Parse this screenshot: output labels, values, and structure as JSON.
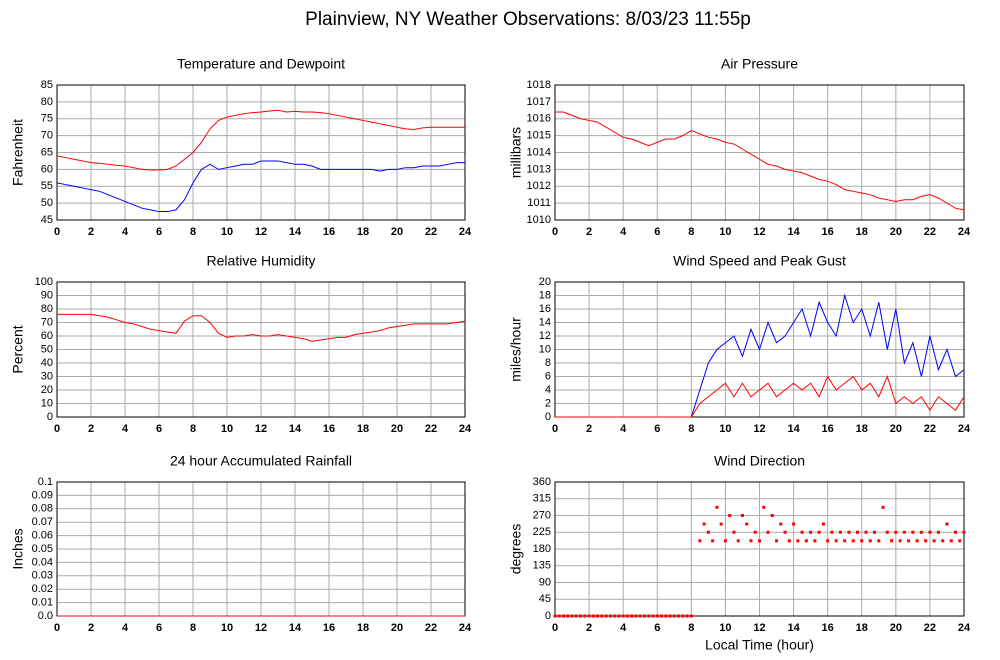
{
  "title": "Plainview, NY Weather Observations: 8/03/23 11:55p",
  "chart_data": [
    {
      "type": "line",
      "title": "Temperature and Dewpoint",
      "ylabel": "Fahrenheit",
      "x": [
        0,
        0.5,
        1,
        1.5,
        2,
        2.5,
        3,
        3.5,
        4,
        4.5,
        5,
        5.5,
        6,
        6.5,
        7,
        7.5,
        8,
        8.5,
        9,
        9.5,
        10,
        10.5,
        11,
        11.5,
        12,
        12.5,
        13,
        13.5,
        14,
        14.5,
        15,
        15.5,
        16,
        16.5,
        17,
        17.5,
        18,
        18.5,
        19,
        19.5,
        20,
        20.5,
        21,
        21.5,
        22,
        22.5,
        23,
        23.5,
        24
      ],
      "series": [
        {
          "color": "#ff0000",
          "values": [
            64,
            63.5,
            63,
            62.5,
            62,
            61.8,
            61.5,
            61.2,
            61,
            60.5,
            60,
            59.8,
            59.8,
            60,
            61,
            63,
            65,
            68,
            72,
            74.5,
            75.5,
            76,
            76.5,
            76.8,
            77,
            77.3,
            77.5,
            77,
            77.2,
            77,
            77,
            76.8,
            76.5,
            76,
            75.5,
            75,
            74.5,
            74,
            73.5,
            73,
            72.5,
            72,
            71.8,
            72.3,
            72.5,
            72.5,
            72.5,
            72.5,
            72.5
          ]
        },
        {
          "color": "#0000ff",
          "values": [
            56,
            55.5,
            55,
            54.5,
            54,
            53.5,
            52.5,
            51.5,
            50.5,
            49.5,
            48.5,
            48,
            47.5,
            47.5,
            48,
            51,
            56,
            60,
            61.5,
            60,
            60.5,
            61,
            61.5,
            61.5,
            62.5,
            62.5,
            62.5,
            62,
            61.5,
            61.5,
            61,
            60,
            60,
            60,
            60,
            60,
            60,
            60,
            59.5,
            60,
            60,
            60.5,
            60.5,
            61,
            61,
            61,
            61.5,
            62,
            62
          ]
        }
      ],
      "xlim": [
        0,
        24
      ],
      "xticks": [
        0,
        2,
        4,
        6,
        8,
        10,
        12,
        14,
        16,
        18,
        20,
        22,
        24
      ],
      "ylim": [
        45,
        85
      ],
      "yticks": [
        45,
        50,
        55,
        60,
        65,
        70,
        75,
        80,
        85
      ],
      "grid": true
    },
    {
      "type": "line",
      "title": "Air Pressure",
      "ylabel": "millibars",
      "x": [
        0,
        0.5,
        1,
        1.5,
        2,
        2.5,
        3,
        3.5,
        4,
        4.5,
        5,
        5.5,
        6,
        6.5,
        7,
        7.5,
        8,
        8.5,
        9,
        9.5,
        10,
        10.5,
        11,
        11.5,
        12,
        12.5,
        13,
        13.5,
        14,
        14.5,
        15,
        15.5,
        16,
        16.5,
        17,
        17.5,
        18,
        18.5,
        19,
        19.5,
        20,
        20.5,
        21,
        21.5,
        22,
        22.5,
        23,
        23.5,
        24
      ],
      "series": [
        {
          "color": "#ff0000",
          "values": [
            1016.4,
            1016.4,
            1016.2,
            1016,
            1015.9,
            1015.8,
            1015.5,
            1015.2,
            1014.9,
            1014.8,
            1014.6,
            1014.4,
            1014.6,
            1014.8,
            1014.8,
            1015,
            1015.3,
            1015.1,
            1014.9,
            1014.8,
            1014.6,
            1014.5,
            1014.2,
            1013.9,
            1013.6,
            1013.3,
            1013.2,
            1013,
            1012.9,
            1012.8,
            1012.6,
            1012.4,
            1012.3,
            1012.1,
            1011.8,
            1011.7,
            1011.6,
            1011.5,
            1011.3,
            1011.2,
            1011.1,
            1011.2,
            1011.2,
            1011.4,
            1011.5,
            1011.3,
            1011,
            1010.7,
            1010.6
          ]
        }
      ],
      "xlim": [
        0,
        24
      ],
      "xticks": [
        0,
        2,
        4,
        6,
        8,
        10,
        12,
        14,
        16,
        18,
        20,
        22,
        24
      ],
      "ylim": [
        1010,
        1018
      ],
      "yticks": [
        1010,
        1011,
        1012,
        1013,
        1014,
        1015,
        1016,
        1017,
        1018
      ],
      "grid": true
    },
    {
      "type": "line",
      "title": "Relative Humidity",
      "ylabel": "Percent",
      "x": [
        0,
        0.5,
        1,
        1.5,
        2,
        2.5,
        3,
        3.5,
        4,
        4.5,
        5,
        5.5,
        6,
        6.5,
        7,
        7.5,
        8,
        8.5,
        9,
        9.5,
        10,
        10.5,
        11,
        11.5,
        12,
        12.5,
        13,
        13.5,
        14,
        14.5,
        15,
        15.5,
        16,
        16.5,
        17,
        17.5,
        18,
        18.5,
        19,
        19.5,
        20,
        20.5,
        21,
        21.5,
        22,
        22.5,
        23,
        23.5,
        24
      ],
      "series": [
        {
          "color": "#ff0000",
          "values": [
            76,
            76,
            76,
            76,
            76,
            75,
            74,
            72,
            70,
            69,
            67,
            65,
            64,
            63,
            62,
            71,
            75,
            75,
            70,
            62,
            59,
            60,
            60,
            61,
            60,
            60,
            61,
            60,
            59,
            58,
            56,
            57,
            58,
            59,
            59,
            61,
            62,
            63,
            64,
            66,
            67,
            68,
            69,
            69,
            69,
            69,
            69,
            70,
            71
          ]
        }
      ],
      "xlim": [
        0,
        24
      ],
      "xticks": [
        0,
        2,
        4,
        6,
        8,
        10,
        12,
        14,
        16,
        18,
        20,
        22,
        24
      ],
      "ylim": [
        0,
        100
      ],
      "yticks": [
        0,
        10,
        20,
        30,
        40,
        50,
        60,
        70,
        80,
        90,
        100
      ],
      "grid": true
    },
    {
      "type": "line",
      "title": "Wind Speed and Peak Gust",
      "ylabel": "miles/hour",
      "x": [
        0,
        0.5,
        1,
        1.5,
        2,
        2.5,
        3,
        3.5,
        4,
        4.5,
        5,
        5.5,
        6,
        6.5,
        7,
        7.5,
        8,
        8.5,
        9,
        9.5,
        10,
        10.5,
        11,
        11.5,
        12,
        12.5,
        13,
        13.5,
        14,
        14.5,
        15,
        15.5,
        16,
        16.5,
        17,
        17.5,
        18,
        18.5,
        19,
        19.5,
        20,
        20.5,
        21,
        21.5,
        22,
        22.5,
        23,
        23.5,
        24
      ],
      "series": [
        {
          "color": "#0000ff",
          "values": [
            0,
            0,
            0,
            0,
            0,
            0,
            0,
            0,
            0,
            0,
            0,
            0,
            0,
            0,
            0,
            0,
            0,
            4,
            8,
            10,
            11,
            12,
            9,
            13,
            10,
            14,
            11,
            12,
            14,
            16,
            12,
            17,
            14,
            12,
            18,
            14,
            16,
            12,
            17,
            10,
            16,
            8,
            11,
            6,
            12,
            7,
            10,
            6,
            7
          ]
        },
        {
          "color": "#ff0000",
          "values": [
            0,
            0,
            0,
            0,
            0,
            0,
            0,
            0,
            0,
            0,
            0,
            0,
            0,
            0,
            0,
            0,
            0,
            2,
            3,
            4,
            5,
            3,
            5,
            3,
            4,
            5,
            3,
            4,
            5,
            4,
            5,
            3,
            6,
            4,
            5,
            6,
            4,
            5,
            3,
            6,
            2,
            3,
            2,
            3,
            1,
            3,
            2,
            1,
            3
          ]
        }
      ],
      "xlim": [
        0,
        24
      ],
      "xticks": [
        0,
        2,
        4,
        6,
        8,
        10,
        12,
        14,
        16,
        18,
        20,
        22,
        24
      ],
      "ylim": [
        0,
        20
      ],
      "yticks": [
        0,
        2,
        4,
        6,
        8,
        10,
        12,
        14,
        16,
        18,
        20
      ],
      "grid": true
    },
    {
      "type": "line",
      "title": "24 hour Accumulated Rainfall",
      "ylabel": "Inches",
      "x": [
        0,
        24
      ],
      "series": [
        {
          "color": "#ff0000",
          "values": [
            0,
            0
          ]
        }
      ],
      "xlim": [
        0,
        24
      ],
      "xticks": [
        0,
        2,
        4,
        6,
        8,
        10,
        12,
        14,
        16,
        18,
        20,
        22,
        24
      ],
      "ylim": [
        0,
        0.1
      ],
      "yticks": [
        {
          "value": 0,
          "label": "0.0"
        },
        0.01,
        0.02,
        0.03,
        0.04,
        0.05,
        0.06,
        0.07,
        0.08,
        0.09,
        0.1
      ],
      "grid": true
    },
    {
      "type": "scatter",
      "title": "Wind Direction",
      "ylabel": "degrees",
      "xlabel": "Local Time (hour)",
      "x": [
        0,
        0.25,
        0.5,
        0.75,
        1,
        1.25,
        1.5,
        1.75,
        2,
        2.25,
        2.5,
        2.75,
        3,
        3.25,
        3.5,
        3.75,
        4,
        4.25,
        4.5,
        4.75,
        5,
        5.25,
        5.5,
        5.75,
        6,
        6.25,
        6.5,
        6.75,
        7,
        7.25,
        7.5,
        7.75,
        8,
        8.5,
        8.75,
        9,
        9.25,
        9.5,
        9.75,
        10,
        10.25,
        10.5,
        10.75,
        11,
        11.25,
        11.5,
        11.75,
        12,
        12.25,
        12.5,
        12.75,
        13,
        13.25,
        13.5,
        13.75,
        14,
        14.25,
        14.5,
        14.75,
        15,
        15.25,
        15.5,
        15.75,
        16,
        16.25,
        16.5,
        16.75,
        17,
        17.25,
        17.5,
        17.75,
        18,
        18.25,
        18.5,
        18.75,
        19,
        19.25,
        19.5,
        19.75,
        20,
        20.25,
        20.5,
        20.75,
        21,
        21.25,
        21.5,
        21.75,
        22,
        22.25,
        22.5,
        22.75,
        23,
        23.25,
        23.5,
        23.75,
        24
      ],
      "series": [
        {
          "color": "#ff0000",
          "values": [
            0,
            0,
            0,
            0,
            0,
            0,
            0,
            0,
            0,
            0,
            0,
            0,
            0,
            0,
            0,
            0,
            0,
            0,
            0,
            0,
            0,
            0,
            0,
            0,
            0,
            0,
            0,
            0,
            0,
            0,
            0,
            0,
            0,
            202,
            247,
            225,
            202,
            292,
            247,
            202,
            270,
            225,
            202,
            270,
            247,
            202,
            225,
            202,
            292,
            225,
            270,
            202,
            247,
            225,
            202,
            247,
            202,
            225,
            202,
            225,
            202,
            225,
            247,
            202,
            225,
            202,
            225,
            202,
            225,
            202,
            225,
            202,
            225,
            202,
            225,
            202,
            292,
            225,
            202,
            225,
            202,
            225,
            202,
            225,
            202,
            225,
            202,
            225,
            202,
            225,
            202,
            247,
            202,
            225,
            202,
            225
          ]
        }
      ],
      "xlim": [
        0,
        24
      ],
      "xticks": [
        0,
        2,
        4,
        6,
        8,
        10,
        12,
        14,
        16,
        18,
        20,
        22,
        24
      ],
      "ylim": [
        0,
        360
      ],
      "yticks": [
        0,
        45,
        90,
        135,
        180,
        225,
        270,
        315,
        360
      ],
      "grid": true
    }
  ]
}
